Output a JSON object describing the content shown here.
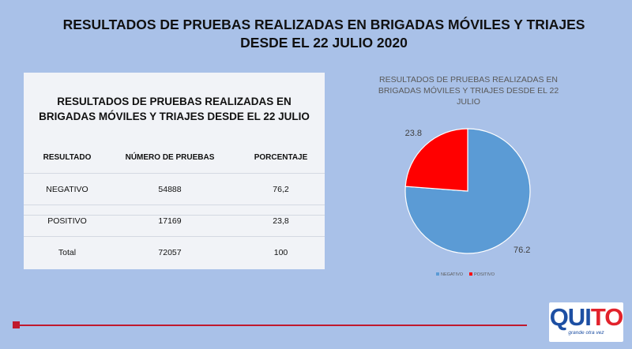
{
  "slide": {
    "title_line1": "RESULTADOS DE PRUEBAS REALIZADAS EN BRIGADAS MÓVILES Y TRIAJES",
    "title_line2": "DESDE EL 22 JULIO 2020"
  },
  "table": {
    "title": "RESULTADOS DE PRUEBAS REALIZADAS EN BRIGADAS MÓVILES Y TRIAJES DESDE EL 22 JULIO",
    "headers": [
      "RESULTADO",
      "NÚMERO DE PRUEBAS",
      "PORCENTAJE"
    ],
    "rows": [
      [
        "NEGATIVO",
        "54888",
        "76,2"
      ],
      [
        "POSITIVO",
        "17169",
        "23,8"
      ],
      [
        "Total",
        "72057",
        "100"
      ]
    ]
  },
  "chart_data": {
    "type": "pie",
    "title": "RESULTADOS DE PRUEBAS REALIZADAS EN BRIGADAS MÓVILES Y TRIAJES DESDE EL 22 JULIO",
    "categories": [
      "NEGATIVO",
      "POSITIVO"
    ],
    "values": [
      76.2,
      23.8
    ],
    "data_labels": [
      "76.2",
      "23.8"
    ],
    "colors": [
      "#5b9bd5",
      "#ff0000"
    ],
    "legend_position": "bottom"
  },
  "logo": {
    "text_main": "QUI",
    "text_accent": "TO",
    "tagline": "grande otra vez"
  },
  "colors": {
    "background": "#a9c1e8",
    "accent_red": "#c0192d"
  }
}
